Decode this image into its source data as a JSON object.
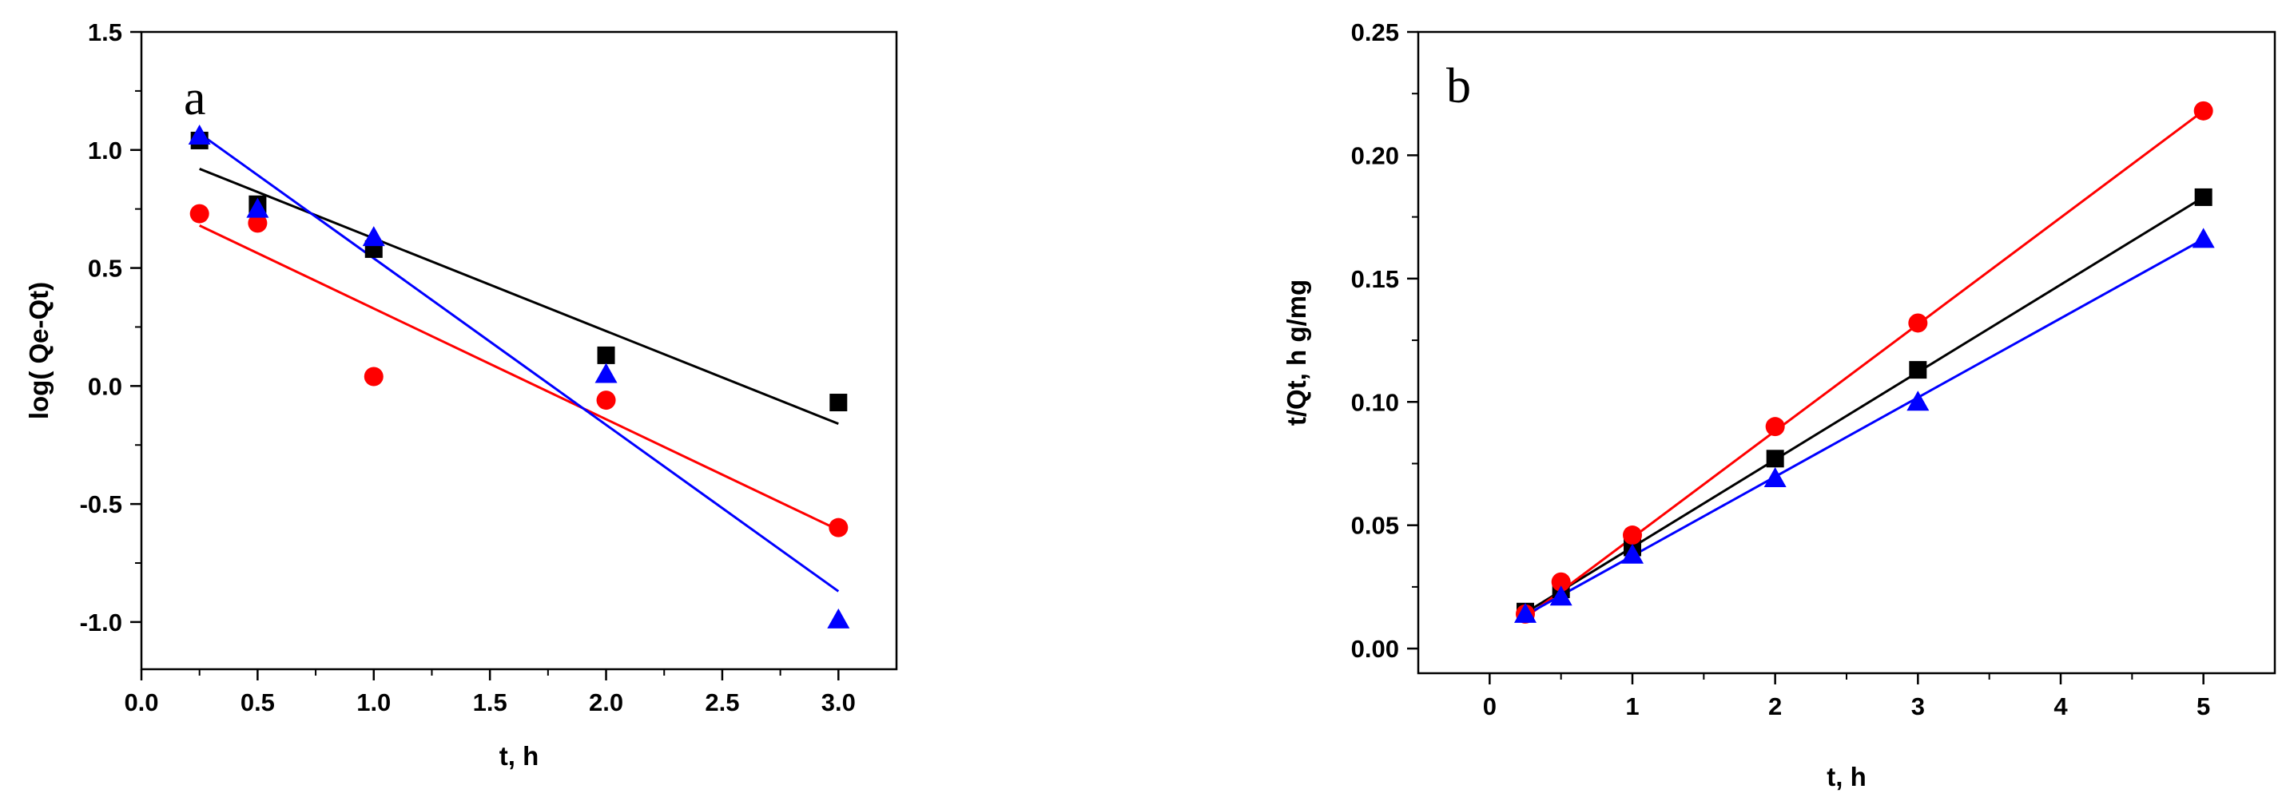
{
  "chart_data": [
    {
      "panel": "a",
      "type": "scatter",
      "xlabel": "t, h",
      "ylabel": "log( Qe-Qt)",
      "xlim": [
        0.0,
        3.25
      ],
      "ylim": [
        -1.2,
        1.5
      ],
      "xticks": [
        0.0,
        0.5,
        1.0,
        1.5,
        2.0,
        2.5,
        3.0
      ],
      "xtick_labels": [
        "0.0",
        "0.5",
        "1.0",
        "1.5",
        "2.0",
        "2.5",
        "3.0"
      ],
      "yticks": [
        -1.0,
        -0.5,
        0.0,
        0.5,
        1.0,
        1.5
      ],
      "ytick_labels": [
        "-1.0",
        "-0.5",
        "0.0",
        "0.5",
        "1.0",
        "1.5"
      ],
      "series": [
        {
          "name": "black",
          "marker": "square",
          "color": "#000000",
          "x": [
            0.25,
            0.5,
            1.0,
            2.0,
            3.0
          ],
          "y": [
            1.04,
            0.77,
            0.58,
            0.13,
            -0.07
          ],
          "fit": [
            [
              0.25,
              0.92
            ],
            [
              3.0,
              -0.16
            ]
          ]
        },
        {
          "name": "red",
          "marker": "circle",
          "color": "#ff0000",
          "x": [
            0.25,
            0.5,
            1.0,
            2.0,
            3.0
          ],
          "y": [
            0.73,
            0.69,
            0.04,
            -0.06,
            -0.6
          ],
          "fit": [
            [
              0.25,
              0.68
            ],
            [
              3.0,
              -0.61
            ]
          ]
        },
        {
          "name": "blue",
          "marker": "triangle",
          "color": "#0000ff",
          "x": [
            0.25,
            0.5,
            1.0,
            2.0,
            3.0
          ],
          "y": [
            1.06,
            0.75,
            0.63,
            0.05,
            -0.99
          ],
          "fit": [
            [
              0.25,
              1.07
            ],
            [
              3.0,
              -0.87
            ]
          ]
        }
      ]
    },
    {
      "panel": "b",
      "type": "scatter",
      "xlabel": "t, h",
      "ylabel": "t/Qt, h g/mg",
      "xlim": [
        -0.5,
        5.5
      ],
      "ylim": [
        -0.01,
        0.25
      ],
      "xticks": [
        0,
        1,
        2,
        3,
        4,
        5
      ],
      "xtick_labels": [
        "0",
        "1",
        "2",
        "3",
        "4",
        "5"
      ],
      "yticks": [
        0.0,
        0.05,
        0.1,
        0.15,
        0.2,
        0.25
      ],
      "ytick_labels": [
        "0.00",
        "0.05",
        "0.10",
        "0.15",
        "0.20",
        "0.25"
      ],
      "series": [
        {
          "name": "black",
          "marker": "square",
          "color": "#000000",
          "x": [
            0.25,
            0.5,
            1,
            2,
            3,
            5
          ],
          "y": [
            0.015,
            0.024,
            0.041,
            0.077,
            0.113,
            0.183
          ],
          "fit": [
            [
              0.25,
              0.0145
            ],
            [
              5,
              0.183
            ]
          ]
        },
        {
          "name": "red",
          "marker": "circle",
          "color": "#ff0000",
          "x": [
            0.25,
            0.5,
            1,
            2,
            3,
            5
          ],
          "y": [
            0.014,
            0.027,
            0.046,
            0.09,
            0.132,
            0.218
          ],
          "fit": [
            [
              0.25,
              0.0125
            ],
            [
              5,
              0.218
            ]
          ]
        },
        {
          "name": "blue",
          "marker": "triangle",
          "color": "#0000ff",
          "x": [
            0.25,
            0.5,
            1,
            2,
            3,
            5
          ],
          "y": [
            0.014,
            0.021,
            0.038,
            0.069,
            0.1,
            0.166
          ],
          "fit": [
            [
              0.25,
              0.0135
            ],
            [
              5,
              0.166
            ]
          ]
        }
      ]
    }
  ]
}
